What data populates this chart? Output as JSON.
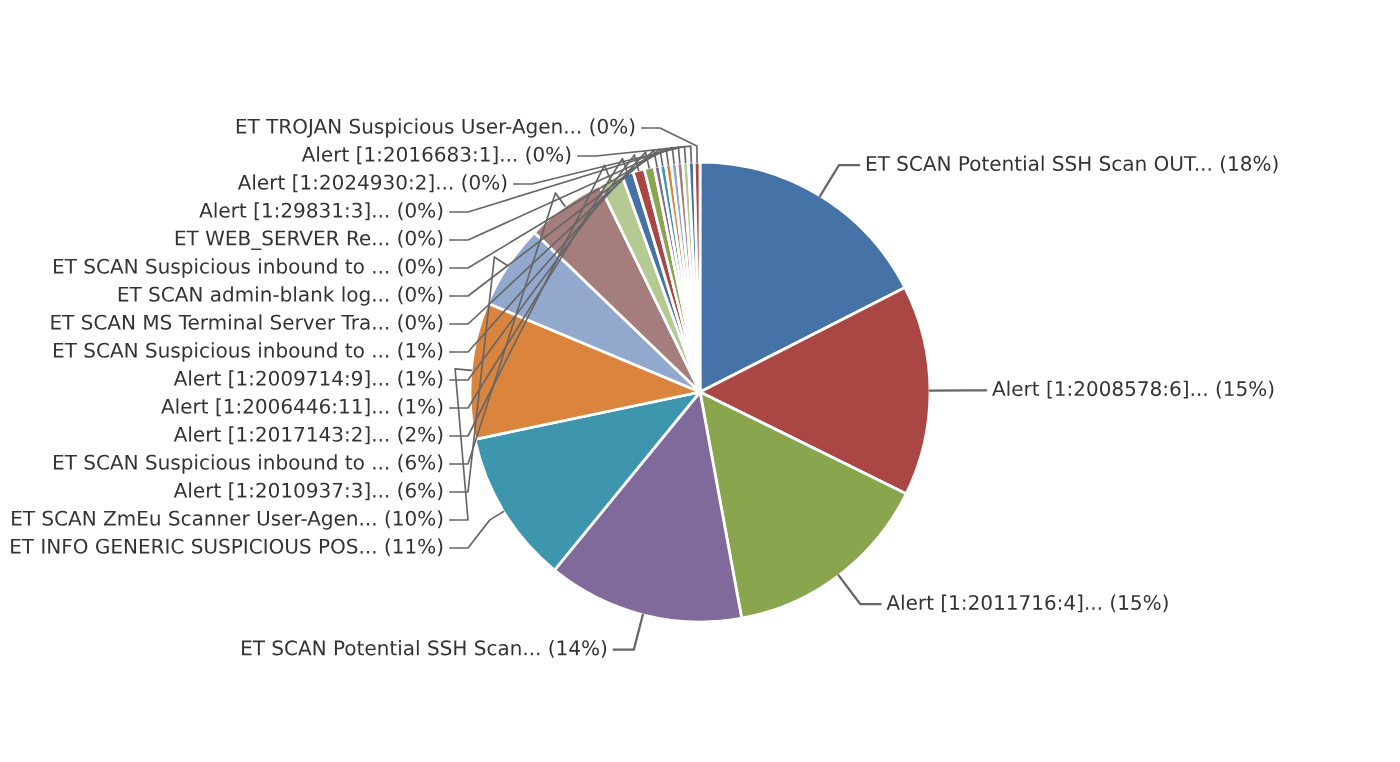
{
  "chart_data": {
    "type": "pie",
    "categories": [
      "ET SCAN Potential SSH Scan OUT...",
      "Alert [1:2008578:6]...",
      "Alert [1:2011716:4]...",
      "ET SCAN Potential SSH Scan...",
      "ET INFO GENERIC SUSPICIOUS POS...",
      "ET SCAN ZmEu Scanner User-Agen...",
      "Alert [1:2010937:3]...",
      "ET SCAN Suspicious inbound to ...",
      "Alert [1:2017143:2]...",
      "Alert [1:2006446:11]...",
      "Alert [1:2009714:9]...",
      "ET SCAN Suspicious inbound to ...",
      "ET SCAN MS Terminal Server Tra...",
      "ET SCAN admin-blank log...",
      "ET SCAN Suspicious inbound to ...",
      "ET WEB_SERVER Re...",
      "Alert [1:29831:3]...",
      "Alert [1:2024930:2]...",
      "Alert [1:2016683:1]...",
      "ET TROJAN Suspicious User-Agen..."
    ],
    "values": [
      17.5,
      14.8,
      14.8,
      13.8,
      10.8,
      9.6,
      5.9,
      5.6,
      1.7,
      0.8,
      0.8,
      0.7,
      0.4,
      0.4,
      0.4,
      0.4,
      0.4,
      0.4,
      0.4,
      0.4
    ],
    "value_labels": [
      "(18%)",
      "(15%)",
      "(15%)",
      "(14%)",
      "(11%)",
      "(10%)",
      "(6%)",
      "(6%)",
      "(2%)",
      "(1%)",
      "(1%)",
      "(1%)",
      "(0%)",
      "(0%)",
      "(0%)",
      "(0%)",
      "(0%)",
      "(0%)",
      "(0%)",
      "(0%)"
    ],
    "colors": [
      "#4572a7",
      "#aa4643",
      "#89a54e",
      "#80699b",
      "#3d96ae",
      "#db843d",
      "#92a8cd",
      "#a47d7c",
      "#b5ca92",
      "#4572a7",
      "#aa4643",
      "#89a54e",
      "#80699b",
      "#3d96ae",
      "#db843d",
      "#92a8cd",
      "#a47d7c",
      "#b5ca92",
      "#4572a7",
      "#aa4643"
    ]
  }
}
